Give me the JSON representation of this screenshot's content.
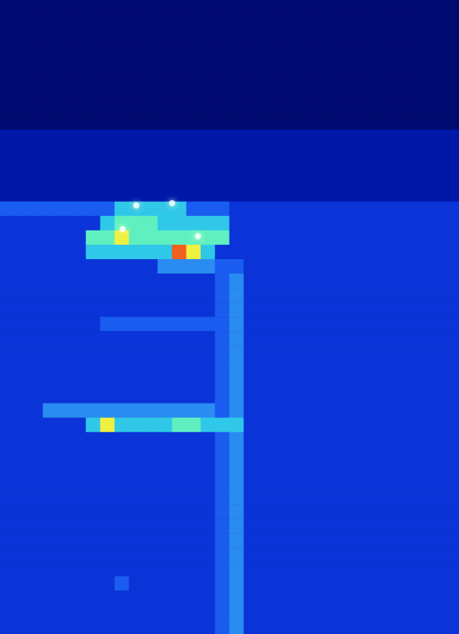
{
  "chart_data": {
    "type": "heatmap",
    "tick_labels": false,
    "xlim": [
      0,
      32
    ],
    "ylim": [
      0,
      44
    ],
    "value_range": [
      0,
      9
    ],
    "cells": [
      [
        0,
        0,
        0,
        0,
        0,
        0,
        0,
        0,
        0,
        0,
        0,
        0,
        0,
        0,
        0,
        0,
        0,
        0,
        0,
        0,
        0,
        0,
        0,
        0,
        0,
        0,
        0,
        0,
        0,
        0,
        0,
        0
      ],
      [
        0,
        0,
        0,
        0,
        0,
        0,
        0,
        0,
        0,
        0,
        0,
        0,
        0,
        0,
        0,
        0,
        0,
        0,
        0,
        0,
        0,
        0,
        0,
        0,
        0,
        0,
        0,
        0,
        0,
        0,
        0,
        0
      ],
      [
        0,
        0,
        0,
        0,
        0,
        0,
        0,
        0,
        0,
        0,
        0,
        0,
        0,
        0,
        0,
        0,
        0,
        0,
        0,
        0,
        0,
        0,
        0,
        0,
        0,
        0,
        0,
        0,
        0,
        0,
        0,
        0
      ],
      [
        0,
        0,
        0,
        0,
        0,
        0,
        0,
        0,
        0,
        0,
        0,
        0,
        0,
        0,
        0,
        0,
        0,
        0,
        0,
        0,
        0,
        0,
        0,
        0,
        0,
        0,
        0,
        0,
        0,
        0,
        0,
        0
      ],
      [
        0,
        0,
        0,
        0,
        0,
        0,
        0,
        0,
        0,
        0,
        0,
        0,
        0,
        0,
        0,
        0,
        0,
        0,
        0,
        0,
        0,
        0,
        0,
        0,
        0,
        0,
        0,
        0,
        0,
        0,
        0,
        0
      ],
      [
        0,
        0,
        0,
        0,
        0,
        0,
        0,
        0,
        0,
        0,
        0,
        0,
        0,
        0,
        0,
        0,
        0,
        0,
        0,
        0,
        0,
        0,
        0,
        0,
        0,
        0,
        0,
        0,
        0,
        0,
        0,
        0
      ],
      [
        0,
        0,
        0,
        0,
        0,
        0,
        0,
        0,
        0,
        0,
        0,
        0,
        0,
        0,
        0,
        0,
        0,
        0,
        0,
        0,
        0,
        0,
        0,
        0,
        0,
        0,
        0,
        0,
        0,
        0,
        0,
        0
      ],
      [
        0,
        0,
        0,
        0,
        0,
        0,
        0,
        0,
        0,
        0,
        0,
        0,
        0,
        0,
        0,
        0,
        0,
        0,
        0,
        0,
        0,
        0,
        0,
        0,
        0,
        0,
        0,
        0,
        0,
        0,
        0,
        0
      ],
      [
        0,
        0,
        0,
        0,
        0,
        0,
        0,
        0,
        0,
        0,
        0,
        0,
        0,
        0,
        0,
        0,
        0,
        0,
        0,
        0,
        0,
        0,
        0,
        0,
        0,
        0,
        0,
        0,
        0,
        0,
        0,
        0
      ],
      [
        1,
        1,
        1,
        1,
        1,
        1,
        1,
        1,
        1,
        1,
        1,
        1,
        1,
        1,
        1,
        1,
        1,
        1,
        1,
        1,
        1,
        1,
        1,
        1,
        1,
        1,
        1,
        1,
        1,
        1,
        1,
        1
      ],
      [
        1,
        1,
        1,
        1,
        1,
        1,
        1,
        1,
        1,
        1,
        1,
        1,
        1,
        1,
        1,
        1,
        1,
        1,
        1,
        1,
        1,
        1,
        1,
        1,
        1,
        1,
        1,
        1,
        1,
        1,
        1,
        1
      ],
      [
        1,
        1,
        1,
        1,
        1,
        1,
        1,
        1,
        1,
        1,
        1,
        1,
        1,
        1,
        1,
        1,
        1,
        1,
        1,
        1,
        1,
        1,
        1,
        1,
        1,
        1,
        1,
        1,
        1,
        1,
        1,
        1
      ],
      [
        1,
        1,
        1,
        1,
        1,
        1,
        1,
        1,
        1,
        1,
        1,
        1,
        1,
        1,
        1,
        1,
        1,
        1,
        1,
        1,
        1,
        1,
        1,
        1,
        1,
        1,
        1,
        1,
        1,
        1,
        1,
        1
      ],
      [
        1,
        1,
        1,
        1,
        1,
        1,
        1,
        1,
        1,
        1,
        1,
        1,
        1,
        1,
        1,
        1,
        1,
        1,
        1,
        1,
        1,
        1,
        1,
        1,
        1,
        1,
        1,
        1,
        1,
        1,
        1,
        1
      ],
      [
        3,
        3,
        3,
        3,
        3,
        3,
        3,
        3,
        5,
        5,
        5,
        5,
        5,
        3,
        3,
        3,
        2,
        2,
        2,
        2,
        2,
        2,
        2,
        2,
        2,
        2,
        2,
        2,
        2,
        2,
        2,
        2
      ],
      [
        2,
        2,
        2,
        2,
        2,
        2,
        2,
        5,
        6,
        6,
        6,
        5,
        5,
        5,
        5,
        5,
        2,
        2,
        2,
        2,
        2,
        2,
        2,
        2,
        2,
        2,
        2,
        2,
        2,
        2,
        2,
        2
      ],
      [
        2,
        2,
        2,
        2,
        2,
        2,
        6,
        6,
        7,
        6,
        6,
        6,
        6,
        6,
        6,
        6,
        2,
        2,
        2,
        2,
        2,
        2,
        2,
        2,
        2,
        2,
        2,
        2,
        2,
        2,
        2,
        2
      ],
      [
        2,
        2,
        2,
        2,
        2,
        2,
        5,
        5,
        5,
        5,
        5,
        5,
        8,
        7,
        5,
        2,
        2,
        2,
        2,
        2,
        2,
        2,
        2,
        2,
        2,
        2,
        2,
        2,
        2,
        2,
        2,
        2
      ],
      [
        2,
        2,
        2,
        2,
        2,
        2,
        2,
        2,
        2,
        2,
        2,
        4,
        4,
        4,
        4,
        3,
        3,
        2,
        2,
        2,
        2,
        2,
        2,
        2,
        2,
        2,
        2,
        2,
        2,
        2,
        2,
        2
      ],
      [
        2,
        2,
        2,
        2,
        2,
        2,
        2,
        2,
        2,
        2,
        2,
        2,
        2,
        2,
        2,
        3,
        4,
        2,
        2,
        2,
        2,
        2,
        2,
        2,
        2,
        2,
        2,
        2,
        2,
        2,
        2,
        2
      ],
      [
        2,
        2,
        2,
        2,
        2,
        2,
        2,
        2,
        2,
        2,
        2,
        2,
        2,
        2,
        2,
        3,
        4,
        2,
        2,
        2,
        2,
        2,
        2,
        2,
        2,
        2,
        2,
        2,
        2,
        2,
        2,
        2
      ],
      [
        2,
        2,
        2,
        2,
        2,
        2,
        2,
        2,
        2,
        2,
        2,
        2,
        2,
        2,
        2,
        3,
        4,
        2,
        2,
        2,
        2,
        2,
        2,
        2,
        2,
        2,
        2,
        2,
        2,
        2,
        2,
        2
      ],
      [
        2,
        2,
        2,
        2,
        2,
        2,
        2,
        3,
        3,
        3,
        3,
        3,
        3,
        3,
        3,
        3,
        4,
        2,
        2,
        2,
        2,
        2,
        2,
        2,
        2,
        2,
        2,
        2,
        2,
        2,
        2,
        2
      ],
      [
        2,
        2,
        2,
        2,
        2,
        2,
        2,
        2,
        2,
        2,
        2,
        2,
        2,
        2,
        2,
        3,
        4,
        2,
        2,
        2,
        2,
        2,
        2,
        2,
        2,
        2,
        2,
        2,
        2,
        2,
        2,
        2
      ],
      [
        2,
        2,
        2,
        2,
        2,
        2,
        2,
        2,
        2,
        2,
        2,
        2,
        2,
        2,
        2,
        3,
        4,
        2,
        2,
        2,
        2,
        2,
        2,
        2,
        2,
        2,
        2,
        2,
        2,
        2,
        2,
        2
      ],
      [
        2,
        2,
        2,
        2,
        2,
        2,
        2,
        2,
        2,
        2,
        2,
        2,
        2,
        2,
        2,
        3,
        4,
        2,
        2,
        2,
        2,
        2,
        2,
        2,
        2,
        2,
        2,
        2,
        2,
        2,
        2,
        2
      ],
      [
        2,
        2,
        2,
        2,
        2,
        2,
        2,
        2,
        2,
        2,
        2,
        2,
        2,
        2,
        2,
        3,
        4,
        2,
        2,
        2,
        2,
        2,
        2,
        2,
        2,
        2,
        2,
        2,
        2,
        2,
        2,
        2
      ],
      [
        2,
        2,
        2,
        2,
        2,
        2,
        2,
        2,
        2,
        2,
        2,
        2,
        2,
        2,
        2,
        3,
        4,
        2,
        2,
        2,
        2,
        2,
        2,
        2,
        2,
        2,
        2,
        2,
        2,
        2,
        2,
        2
      ],
      [
        2,
        2,
        2,
        4,
        4,
        4,
        4,
        4,
        4,
        4,
        4,
        4,
        4,
        4,
        4,
        3,
        4,
        2,
        2,
        2,
        2,
        2,
        2,
        2,
        2,
        2,
        2,
        2,
        2,
        2,
        2,
        2
      ],
      [
        2,
        2,
        2,
        2,
        2,
        2,
        5,
        7,
        5,
        5,
        5,
        5,
        6,
        6,
        5,
        5,
        5,
        2,
        2,
        2,
        2,
        2,
        2,
        2,
        2,
        2,
        2,
        2,
        2,
        2,
        2,
        2
      ],
      [
        2,
        2,
        2,
        2,
        2,
        2,
        2,
        2,
        2,
        2,
        2,
        2,
        2,
        2,
        2,
        3,
        4,
        2,
        2,
        2,
        2,
        2,
        2,
        2,
        2,
        2,
        2,
        2,
        2,
        2,
        2,
        2
      ],
      [
        2,
        2,
        2,
        2,
        2,
        2,
        2,
        2,
        2,
        2,
        2,
        2,
        2,
        2,
        2,
        3,
        4,
        2,
        2,
        2,
        2,
        2,
        2,
        2,
        2,
        2,
        2,
        2,
        2,
        2,
        2,
        2
      ],
      [
        2,
        2,
        2,
        2,
        2,
        2,
        2,
        2,
        2,
        2,
        2,
        2,
        2,
        2,
        2,
        3,
        4,
        2,
        2,
        2,
        2,
        2,
        2,
        2,
        2,
        2,
        2,
        2,
        2,
        2,
        2,
        2
      ],
      [
        2,
        2,
        2,
        2,
        2,
        2,
        2,
        2,
        2,
        2,
        2,
        2,
        2,
        2,
        2,
        3,
        4,
        2,
        2,
        2,
        2,
        2,
        2,
        2,
        2,
        2,
        2,
        2,
        2,
        2,
        2,
        2
      ],
      [
        2,
        2,
        2,
        2,
        2,
        2,
        2,
        2,
        2,
        2,
        2,
        2,
        2,
        2,
        2,
        3,
        4,
        2,
        2,
        2,
        2,
        2,
        2,
        2,
        2,
        2,
        2,
        2,
        2,
        2,
        2,
        2
      ],
      [
        2,
        2,
        2,
        2,
        2,
        2,
        2,
        2,
        2,
        2,
        2,
        2,
        2,
        2,
        2,
        3,
        4,
        2,
        2,
        2,
        2,
        2,
        2,
        2,
        2,
        2,
        2,
        2,
        2,
        2,
        2,
        2
      ],
      [
        2,
        2,
        2,
        2,
        2,
        2,
        2,
        2,
        2,
        2,
        2,
        2,
        2,
        2,
        2,
        3,
        4,
        2,
        2,
        2,
        2,
        2,
        2,
        2,
        2,
        2,
        2,
        2,
        2,
        2,
        2,
        2
      ],
      [
        2,
        2,
        2,
        2,
        2,
        2,
        2,
        2,
        2,
        2,
        2,
        2,
        2,
        2,
        2,
        3,
        4,
        2,
        2,
        2,
        2,
        2,
        2,
        2,
        2,
        2,
        2,
        2,
        2,
        2,
        2,
        2
      ],
      [
        2,
        2,
        2,
        2,
        2,
        2,
        2,
        2,
        2,
        2,
        2,
        2,
        2,
        2,
        2,
        3,
        4,
        2,
        2,
        2,
        2,
        2,
        2,
        2,
        2,
        2,
        2,
        2,
        2,
        2,
        2,
        2
      ],
      [
        2,
        2,
        2,
        2,
        2,
        2,
        2,
        2,
        2,
        2,
        2,
        2,
        2,
        2,
        2,
        3,
        4,
        2,
        2,
        2,
        2,
        2,
        2,
        2,
        2,
        2,
        2,
        2,
        2,
        2,
        2,
        2
      ],
      [
        2,
        2,
        2,
        2,
        2,
        2,
        2,
        2,
        3,
        2,
        2,
        2,
        2,
        2,
        2,
        3,
        4,
        2,
        2,
        2,
        2,
        2,
        2,
        2,
        2,
        2,
        2,
        2,
        2,
        2,
        2,
        2
      ],
      [
        2,
        2,
        2,
        2,
        2,
        2,
        2,
        2,
        2,
        2,
        2,
        2,
        2,
        2,
        2,
        3,
        4,
        2,
        2,
        2,
        2,
        2,
        2,
        2,
        2,
        2,
        2,
        2,
        2,
        2,
        2,
        2
      ],
      [
        2,
        2,
        2,
        2,
        2,
        2,
        2,
        2,
        2,
        2,
        2,
        2,
        2,
        2,
        2,
        3,
        4,
        2,
        2,
        2,
        2,
        2,
        2,
        2,
        2,
        2,
        2,
        2,
        2,
        2,
        2,
        2
      ],
      [
        2,
        2,
        2,
        2,
        2,
        2,
        2,
        2,
        2,
        2,
        2,
        2,
        2,
        2,
        2,
        3,
        4,
        2,
        2,
        2,
        2,
        2,
        2,
        2,
        2,
        2,
        2,
        2,
        2,
        2,
        2,
        2
      ]
    ],
    "markers": {
      "x": [
        9.5,
        12.0,
        8.55,
        13.8
      ],
      "y": [
        14.25,
        14.1,
        15.9,
        16.4
      ],
      "color": "#ffffff"
    }
  }
}
